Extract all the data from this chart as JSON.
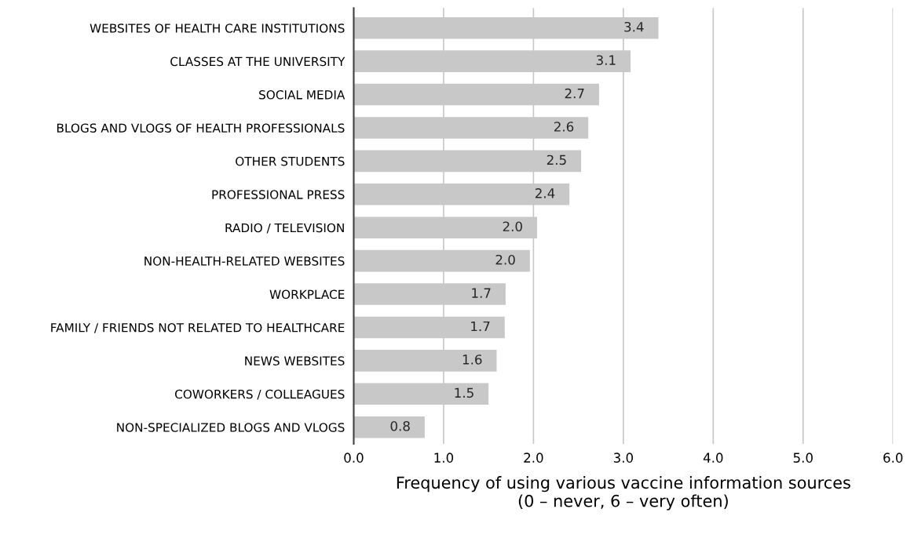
{
  "chart_data": {
    "type": "bar",
    "orientation": "horizontal",
    "categories": [
      "WEBSITES OF HEALTH CARE INSTITUTIONS",
      "CLASSES AT THE UNIVERSITY",
      "SOCIAL MEDIA",
      "BLOGS AND VLOGS OF HEALTH PROFESSIONALS",
      "OTHER STUDENTS",
      "PROFESSIONAL PRESS",
      "RADIO / TELEVISION",
      "NON-HEALTH-RELATED WEBSITES",
      "WORKPLACE",
      "FAMILY / FRIENDS NOT RELATED TO HEALTHCARE",
      "NEWS WEBSITES",
      "COWORKERS / COLLEAGUES",
      "NON-SPECIALIZED BLOGS AND VLOGS"
    ],
    "values": [
      3.39,
      3.08,
      2.73,
      2.61,
      2.53,
      2.4,
      2.04,
      1.96,
      1.69,
      1.68,
      1.59,
      1.5,
      0.79
    ],
    "value_labels": [
      "3.4",
      "3.1",
      "2.7",
      "2.6",
      "2.5",
      "2.4",
      "2.0",
      "2.0",
      "1.7",
      "1.7",
      "1.6",
      "1.5",
      "0.8"
    ],
    "color": "#c8c8c8",
    "xlabel": "Frequency of using various vaccine information sources\n(0 – never, 6 – very often)",
    "xlim": [
      0,
      6
    ],
    "xticks": [
      {
        "value": 0,
        "label": "0.0"
      },
      {
        "value": 1,
        "label": "1.0"
      },
      {
        "value": 2,
        "label": "2.0"
      },
      {
        "value": 3,
        "label": "3.0"
      },
      {
        "value": 4,
        "label": "4.0"
      },
      {
        "value": 5,
        "label": "5.0"
      },
      {
        "value": 6,
        "label": "6.0"
      }
    ],
    "grid": "x"
  }
}
